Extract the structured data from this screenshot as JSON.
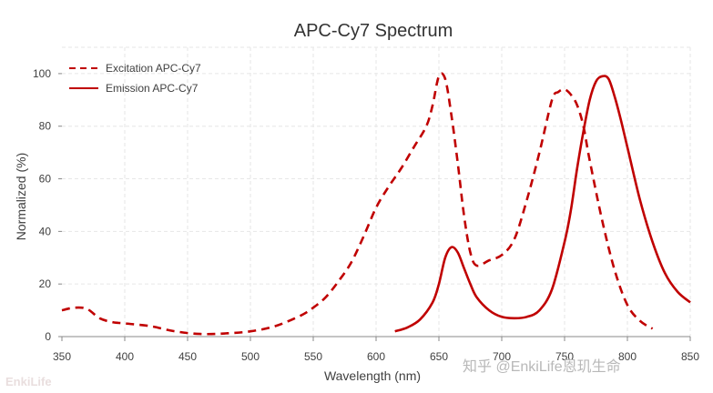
{
  "chart_data": {
    "type": "line",
    "title": "APC-Cy7  Spectrum",
    "xlabel": "Wavelength (nm)",
    "ylabel": "Normalized (%)",
    "xlim": [
      350,
      850
    ],
    "ylim": [
      0,
      110
    ],
    "xticks": [
      350,
      400,
      450,
      500,
      550,
      600,
      650,
      700,
      750,
      800,
      850
    ],
    "yticks": [
      0,
      20,
      40,
      60,
      80,
      100
    ],
    "grid": true,
    "legend_position": "top-left",
    "series": [
      {
        "name": "Excitation APC-Cy7",
        "style": "dashed",
        "color": "#c00000",
        "x": [
          350,
          360,
          370,
          380,
          390,
          400,
          420,
          440,
          460,
          480,
          500,
          520,
          540,
          550,
          560,
          570,
          580,
          590,
          600,
          610,
          620,
          630,
          640,
          645,
          650,
          655,
          660,
          665,
          670,
          675,
          680,
          690,
          700,
          710,
          720,
          730,
          740,
          745,
          750,
          755,
          760,
          765,
          770,
          780,
          790,
          800,
          810,
          820
        ],
        "y": [
          10,
          11,
          10.5,
          7,
          5.5,
          5,
          4,
          2,
          1,
          1.2,
          2,
          4,
          8,
          11,
          15,
          21,
          28,
          38,
          49,
          57,
          64,
          72,
          80,
          88,
          99,
          98,
          84,
          66,
          46,
          32,
          27,
          29,
          31,
          37,
          52,
          70,
          90,
          93,
          94,
          92,
          88,
          80,
          67,
          44,
          25,
          12,
          6,
          3
        ]
      },
      {
        "name": "Emission APC-Cy7",
        "style": "solid",
        "color": "#c00000",
        "x": [
          615,
          625,
          635,
          645,
          650,
          655,
          660,
          665,
          670,
          675,
          680,
          690,
          700,
          710,
          720,
          730,
          740,
          750,
          755,
          760,
          765,
          770,
          775,
          780,
          785,
          790,
          795,
          800,
          810,
          820,
          830,
          840,
          850
        ],
        "y": [
          2,
          3.5,
          6.5,
          13,
          20,
          30,
          34,
          32,
          26,
          20,
          15,
          10,
          7.5,
          7,
          7.5,
          10,
          18,
          36,
          48,
          64,
          78,
          90,
          97,
          99,
          98,
          91,
          82,
          72,
          52,
          36,
          24,
          17,
          13
        ]
      }
    ]
  },
  "watermark": {
    "corner_text": "EnkiLife",
    "right_text": "知乎 @EnkiLife恩玑生命"
  }
}
